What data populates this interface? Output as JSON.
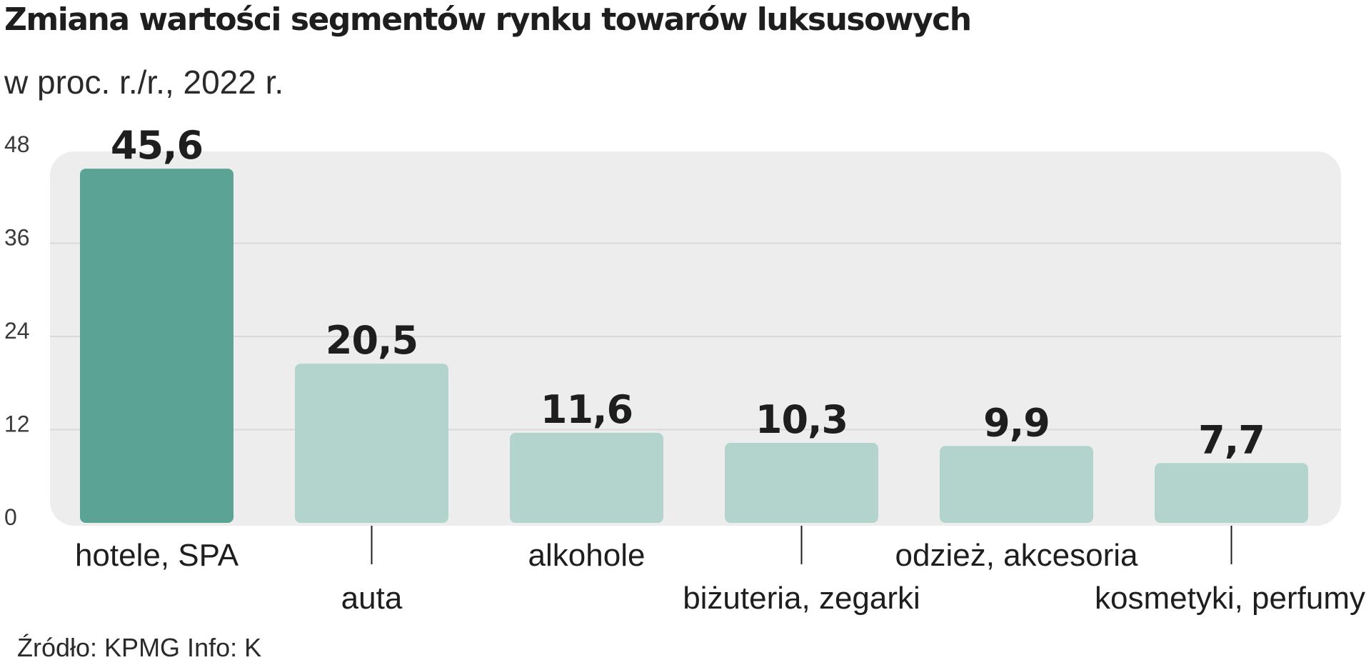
{
  "title": "Zmiana wartości segmentów rynku towarów luksusowych",
  "subtitle": "w proc. r./r., 2022 r.",
  "source": "Źródło: KPMG Info: K",
  "colors": {
    "highlight": "#5ba495",
    "bar": "#b2d4cc",
    "panel": "#ededed",
    "grid": "#d9d9d9"
  },
  "chart_data": {
    "type": "bar",
    "categories": [
      "hotele, SPA",
      "auta",
      "alkohole",
      "biżuteria, zegarki",
      "odzież, akcesoria",
      "kosmetyki, perfumy"
    ],
    "values": [
      45.6,
      20.5,
      11.6,
      10.3,
      9.9,
      7.7
    ],
    "value_labels": [
      "45,6",
      "20,5",
      "11,6",
      "10,3",
      "9,9",
      "7,7"
    ],
    "yticks": [
      0,
      12,
      24,
      36,
      48
    ],
    "ylim": [
      0,
      48
    ],
    "highlight_index": 0,
    "grid": true,
    "legend": "none"
  }
}
